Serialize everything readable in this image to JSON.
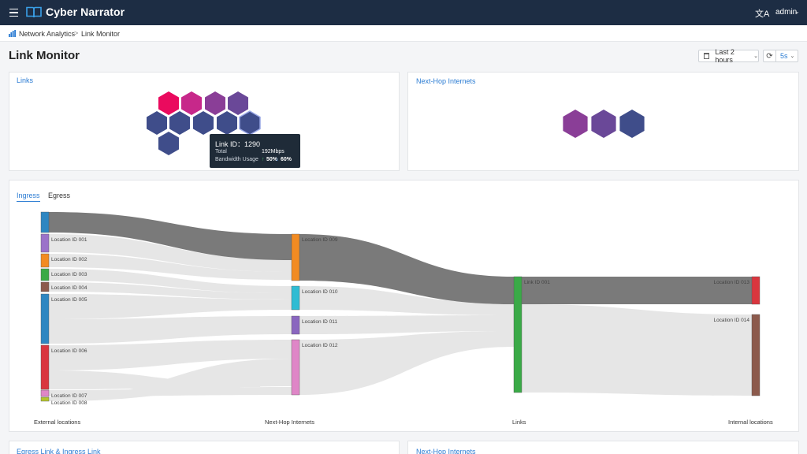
{
  "header": {
    "menu_icon": "hamburger-menu-icon",
    "logo_icon": "book-logo-icon",
    "app_title": "Cyber Narrator",
    "language_icon": "translate-icon",
    "user": "admin",
    "user_caret_icon": "chevron-down-icon",
    "background_color": "#1d2d44"
  },
  "breadcrumb": {
    "icon": "bar-chart-icon",
    "root": "Network Analytics",
    "separator": ">",
    "current": "Link Monitor"
  },
  "page": {
    "title": "Link Monitor"
  },
  "toolbar": {
    "calendar_icon": "calendar-icon",
    "time_range": "Last 2 hours",
    "time_caret": "⌄",
    "refresh_icon": "refresh-icon",
    "refresh_glyph": "⟳",
    "interval": "5s",
    "interval_caret": "⌄",
    "accent_color": "#2b7cd3"
  },
  "links_panel": {
    "title": "Links",
    "hex_colors": [
      "#ea0a5e",
      "#c7288a",
      "#8a3e97",
      "#6a4898",
      "#3f4d8a",
      "#3f4d8a",
      "#3f4d8a",
      "#3f4d8a",
      "#3f4d8a",
      "#3f4d8a"
    ],
    "tooltip": {
      "title": "Link ID：1290",
      "total_label": "Total",
      "total_value": "192Mbps",
      "bandwidth_label": "Bandwidth Usage",
      "up_glyph": "↑",
      "up_value": "50%",
      "down_glyph": "↓",
      "down_value": "60%",
      "up_color": "#4cc26a",
      "down_color": "#3d8ef0"
    }
  },
  "nexthop_panel": {
    "title": "Next-Hop Internets",
    "hex_colors": [
      "#8a3e97",
      "#6a4898",
      "#3f4d8a"
    ]
  },
  "flow_panel": {
    "tabs": [
      {
        "label": "Ingress",
        "active": true
      },
      {
        "label": "Egress",
        "active": false
      }
    ],
    "columns": [
      "External locations",
      "Next-Hop Internets",
      "Links",
      "Internal locations"
    ],
    "external_nodes": [
      {
        "label": "",
        "color": "#2e86c1"
      },
      {
        "label": "Location ID 001",
        "color": "#9b72c9"
      },
      {
        "label": "Location ID 002",
        "color": "#f28b22"
      },
      {
        "label": "Location ID 003",
        "color": "#3aaa47"
      },
      {
        "label": "Location ID 004",
        "color": "#8c5a4c"
      },
      {
        "label": "Location ID 005",
        "color": "#2e86c1"
      },
      {
        "label": "Location ID 006",
        "color": "#d9363e"
      },
      {
        "label": "Location ID 007",
        "color": "#df86c7"
      },
      {
        "label": "Location ID 008",
        "color": "#b4c42d"
      }
    ],
    "nexthop_nodes": [
      {
        "label": "Location ID 009",
        "color": "#f28b22"
      },
      {
        "label": "Location ID 010",
        "color": "#2fbcd3"
      },
      {
        "label": "Location ID 011",
        "color": "#8a66bf"
      },
      {
        "label": "Location ID 012",
        "color": "#df86c7"
      }
    ],
    "link_nodes": [
      {
        "label": "Link ID 001",
        "color": "#3aaa47"
      }
    ],
    "internal_nodes": [
      {
        "label": "Location ID 013",
        "color": "#d9363e"
      },
      {
        "label": "Location ID 014",
        "color": "#8c5a4c"
      }
    ],
    "highlight_flow_color": "#7a7a7a",
    "flow_color": "#e6e6e6"
  },
  "bottom_panels": {
    "left_title": "Egress Link & Ingress Link",
    "right_title": "Next-Hop Internets"
  }
}
